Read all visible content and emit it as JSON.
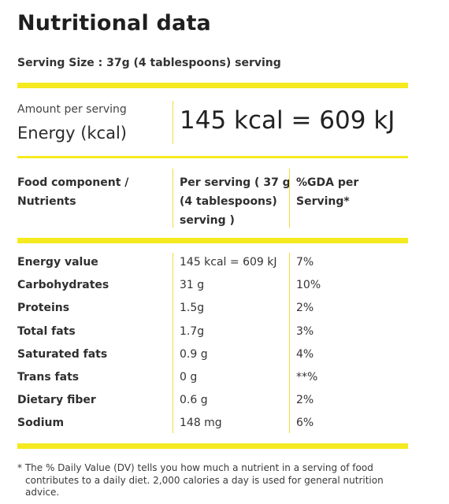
{
  "title": "Nutritional data",
  "serving_size": "Serving Size : 37g (4 tablespoons) serving",
  "amount_per_serving_label": "Amount per serving",
  "energy_label": "Energy (kcal)",
  "energy_value": "145 kcal = 609 kJ",
  "headers": {
    "component_line1": "Food component /",
    "component_line2": "Nutrients",
    "per_serving_line1": "Per serving ( 37 g",
    "per_serving_line2": "(4 tablespoons)",
    "per_serving_line3": "serving )",
    "gda_line1": "%GDA per",
    "gda_line2": "Serving*"
  },
  "rows": [
    {
      "name": "Energy value",
      "per_serving": "145 kcal = 609 kJ",
      "gda": "7%"
    },
    {
      "name": "Carbohydrates",
      "per_serving": "31 g",
      "gda": "10%"
    },
    {
      "name": "Proteins",
      "per_serving": "1.5g",
      "gda": "2%"
    },
    {
      "name": "Total fats",
      "per_serving": "1.7g",
      "gda": "3%"
    },
    {
      "name": "Saturated fats",
      "per_serving": "0.9 g",
      "gda": "4%"
    },
    {
      "name": "Trans fats",
      "per_serving": "0 g",
      "gda": "**%"
    },
    {
      "name": "Dietary fiber",
      "per_serving": "0.6 g",
      "gda": "2%"
    },
    {
      "name": "Sodium",
      "per_serving": "148 mg",
      "gda": "6%"
    }
  ],
  "footnote": "* The % Daily Value (DV) tells you how much a nutrient in a serving of food contributes to a daily diet. 2,000 calories a day is used for general nutrition advice.",
  "colors": {
    "accent_bar": "#f5ea1f",
    "divider": "#f0de3a",
    "text": "#2b2b2b"
  }
}
